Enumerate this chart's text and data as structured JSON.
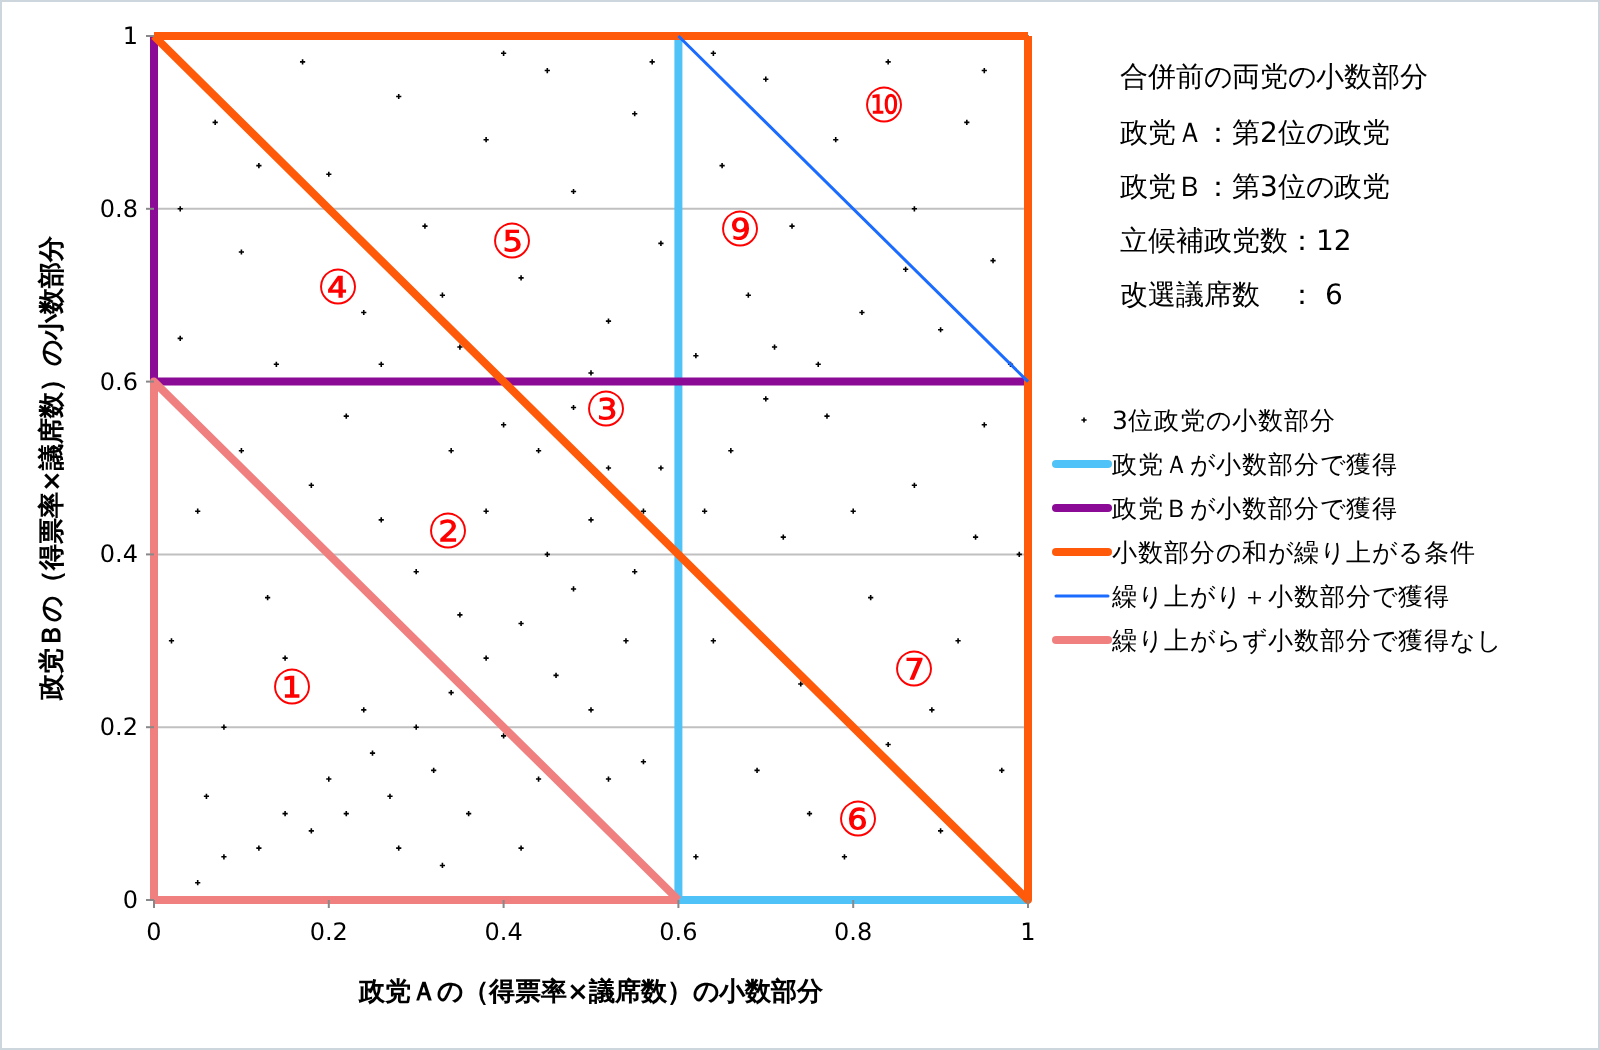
{
  "chart_data": {
    "type": "scatter",
    "title": "合併前の両党の小数部分",
    "xlabel": "政党Ａの（得票率×議席数）の小数部分",
    "ylabel": "政党Ｂの（得票率×議席数）の小数部分",
    "xlim": [
      0,
      1
    ],
    "ylim": [
      0,
      1
    ],
    "xticks": [
      0,
      0.2,
      0.4,
      0.6,
      0.8,
      1
    ],
    "yticks": [
      0,
      0.2,
      0.4,
      0.6,
      0.8,
      1
    ],
    "grid": "y",
    "legend": "right",
    "series": [
      {
        "name": "3位政党の小数部分",
        "marker": "cross",
        "color": "#000000",
        "x": [
          0.05,
          0.08,
          0.12,
          0.15,
          0.18,
          0.2,
          0.22,
          0.25,
          0.27,
          0.3,
          0.32,
          0.34,
          0.36,
          0.38,
          0.4,
          0.42,
          0.44,
          0.46,
          0.48,
          0.5,
          0.52,
          0.54,
          0.56,
          0.28,
          0.33,
          0.42,
          0.24,
          0.35,
          0.45,
          0.38,
          0.5,
          0.55,
          0.58,
          0.3,
          0.02,
          0.05,
          0.08,
          0.1,
          0.13,
          0.18,
          0.22,
          0.06,
          0.15,
          0.03,
          0.07,
          0.1,
          0.14,
          0.17,
          0.2,
          0.24,
          0.28,
          0.31,
          0.35,
          0.38,
          0.42,
          0.45,
          0.48,
          0.52,
          0.55,
          0.58,
          0.12,
          0.26,
          0.4,
          0.5,
          0.57,
          0.03,
          0.33,
          0.62,
          0.65,
          0.68,
          0.7,
          0.73,
          0.76,
          0.78,
          0.81,
          0.84,
          0.87,
          0.9,
          0.93,
          0.96,
          0.98,
          0.64,
          0.71,
          0.86,
          0.95,
          0.62,
          0.64,
          0.66,
          0.69,
          0.72,
          0.74,
          0.77,
          0.79,
          0.82,
          0.84,
          0.87,
          0.9,
          0.92,
          0.95,
          0.97,
          0.99,
          0.63,
          0.7,
          0.8,
          0.89,
          0.75,
          0.94,
          0.44,
          0.48,
          0.52,
          0.4,
          0.56,
          0.26,
          0.34
        ],
        "values": [
          0.02,
          0.05,
          0.06,
          0.1,
          0.08,
          0.14,
          0.1,
          0.17,
          0.12,
          0.2,
          0.15,
          0.24,
          0.1,
          0.28,
          0.19,
          0.32,
          0.14,
          0.26,
          0.36,
          0.22,
          0.14,
          0.3,
          0.16,
          0.06,
          0.04,
          0.06,
          0.22,
          0.33,
          0.4,
          0.45,
          0.44,
          0.38,
          0.5,
          0.38,
          0.3,
          0.45,
          0.2,
          0.52,
          0.35,
          0.48,
          0.56,
          0.12,
          0.28,
          0.65,
          0.9,
          0.75,
          0.62,
          0.97,
          0.84,
          0.68,
          0.93,
          0.78,
          0.64,
          0.88,
          0.72,
          0.96,
          0.82,
          0.67,
          0.91,
          0.76,
          0.85,
          0.62,
          0.98,
          0.61,
          0.97,
          0.8,
          0.7,
          0.63,
          0.85,
          0.7,
          0.95,
          0.78,
          0.62,
          0.88,
          0.68,
          0.97,
          0.8,
          0.66,
          0.9,
          0.74,
          0.62,
          0.98,
          0.64,
          0.73,
          0.96,
          0.05,
          0.3,
          0.52,
          0.15,
          0.42,
          0.25,
          0.56,
          0.05,
          0.35,
          0.18,
          0.48,
          0.08,
          0.3,
          0.55,
          0.15,
          0.4,
          0.45,
          0.58,
          0.45,
          0.22,
          0.1,
          0.42,
          0.52,
          0.57,
          0.5,
          0.55,
          0.45,
          0.44,
          0.52
        ]
      },
      {
        "name": "政党Ａが小数部分で獲得",
        "type": "line",
        "color": "#4fc3f7",
        "x": [
          0.6,
          0.6,
          1
        ],
        "values": [
          1,
          0,
          0
        ]
      },
      {
        "name": "政党Ｂが小数部分で獲得",
        "type": "line",
        "color": "#8b0a96",
        "x": [
          0,
          0,
          1
        ],
        "values": [
          1,
          0.6,
          0.6
        ]
      },
      {
        "name": "小数部分の和が繰り上がる条件",
        "type": "line",
        "color": "#ff5a0a",
        "x": [
          0,
          1,
          1
        ],
        "values": [
          1,
          0,
          1
        ]
      },
      {
        "type": "line",
        "color": "#ff5a0a",
        "x": [
          0,
          1
        ],
        "values": [
          1,
          1
        ]
      },
      {
        "name": "繰り上がり＋小数部分で獲得",
        "type": "line",
        "color": "#1a6bff",
        "x": [
          0.6,
          1
        ],
        "values": [
          1,
          0.6
        ]
      },
      {
        "name": "繰り上がらず小数部分で獲得なし",
        "type": "line",
        "color": "#f08080",
        "x": [
          0,
          0,
          0.6
        ],
        "values": [
          0,
          0.6,
          0
        ]
      },
      {
        "type": "line",
        "color": "#f08080",
        "x": [
          0,
          0.6
        ],
        "values": [
          0,
          0
        ]
      }
    ],
    "annotations": [
      "政党Ａ：第2位の政党",
      "政党Ｂ：第3位の政党",
      "立候補政党数：12",
      "改選議席数　：  6",
      "①",
      "②",
      "③",
      "④",
      "⑤",
      "⑥",
      "⑦",
      "⑨",
      "⑩"
    ]
  }
}
